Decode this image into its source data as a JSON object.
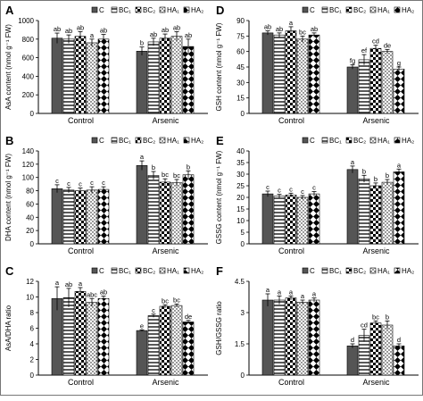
{
  "colors": {
    "axis": "#000000",
    "bar_dark": "#555555",
    "background": "#ffffff"
  },
  "chart_data": [
    {
      "type": "bar",
      "panel_letter": "A",
      "ylabel": "AsA content (nmol g⁻¹ FW)",
      "ylim": [
        0,
        1000
      ],
      "yticks": [
        0,
        200,
        400,
        600,
        800,
        1000
      ],
      "categories": [
        "Control",
        "Arsenic"
      ],
      "series": [
        {
          "name": "C",
          "values": [
            810,
            670
          ],
          "errors": [
            55,
            45
          ],
          "letters": [
            "ab",
            "b"
          ]
        },
        {
          "name": "BC₁",
          "values": [
            800,
            770
          ],
          "errors": [
            45,
            40
          ],
          "letters": [
            "ab",
            "ab"
          ]
        },
        {
          "name": "BC₂",
          "values": [
            830,
            810
          ],
          "errors": [
            50,
            45
          ],
          "letters": [
            "ab",
            "ab"
          ]
        },
        {
          "name": "HA₁",
          "values": [
            760,
            830
          ],
          "errors": [
            40,
            50
          ],
          "letters": [
            "a",
            "ab"
          ]
        },
        {
          "name": "HA₂",
          "values": [
            800,
            720
          ],
          "errors": [
            50,
            80
          ],
          "letters": [
            "ab",
            "ab"
          ]
        }
      ]
    },
    {
      "type": "bar",
      "panel_letter": "B",
      "ylabel": "DHA content (nmol g⁻¹ FW)",
      "ylim": [
        0,
        140
      ],
      "yticks": [
        0,
        20,
        40,
        60,
        80,
        100,
        120,
        140
      ],
      "categories": [
        "Control",
        "Arsenic"
      ],
      "series": [
        {
          "name": "C",
          "values": [
            83,
            118
          ],
          "errors": [
            6,
            7
          ],
          "letters": [
            "c",
            "a"
          ]
        },
        {
          "name": "BC₁",
          "values": [
            81,
            103
          ],
          "errors": [
            4,
            6
          ],
          "letters": [
            "c",
            "b"
          ]
        },
        {
          "name": "BC₂",
          "values": [
            80,
            93
          ],
          "errors": [
            4,
            5
          ],
          "letters": [
            "c",
            "bc"
          ]
        },
        {
          "name": "HA₁",
          "values": [
            81,
            92
          ],
          "errors": [
            5,
            5
          ],
          "letters": [
            "c",
            "bc"
          ]
        },
        {
          "name": "HA₂",
          "values": [
            82,
            104
          ],
          "errors": [
            4,
            6
          ],
          "letters": [
            "c",
            "b"
          ]
        }
      ]
    },
    {
      "type": "bar",
      "panel_letter": "C",
      "ylabel": "AsA/DHA ratio",
      "ylim": [
        0,
        12
      ],
      "yticks": [
        0,
        2,
        4,
        6,
        8,
        10,
        12
      ],
      "categories": [
        "Control",
        "Arsenic"
      ],
      "series": [
        {
          "name": "C",
          "values": [
            9.8,
            5.7
          ],
          "errors": [
            1.5,
            0.1
          ],
          "letters": [
            "a",
            "e"
          ]
        },
        {
          "name": "BC₁",
          "values": [
            9.9,
            7.6
          ],
          "errors": [
            1.2,
            0.2
          ],
          "letters": [
            "ab",
            "c"
          ]
        },
        {
          "name": "BC₂",
          "values": [
            10.7,
            8.8
          ],
          "errors": [
            0.5,
            0.2
          ],
          "letters": [
            "a",
            "bc"
          ]
        },
        {
          "name": "HA₁",
          "values": [
            9.3,
            8.9
          ],
          "errors": [
            0.5,
            0.2
          ],
          "letters": [
            "abc",
            "bc"
          ]
        },
        {
          "name": "HA₂",
          "values": [
            9.8,
            6.8
          ],
          "errors": [
            0.3,
            0.2
          ],
          "letters": [
            "ab",
            "de"
          ]
        }
      ]
    },
    {
      "type": "bar",
      "panel_letter": "D",
      "ylabel": "GSH content (nmol g⁻¹ FW)",
      "ylim": [
        0,
        90
      ],
      "yticks": [
        0,
        15,
        30,
        45,
        60,
        75,
        90
      ],
      "categories": [
        "Control",
        "Arsenic"
      ],
      "series": [
        {
          "name": "C",
          "values": [
            78,
            45
          ],
          "errors": [
            2,
            2
          ],
          "letters": [
            "ab",
            "fg"
          ]
        },
        {
          "name": "BC₁",
          "values": [
            76,
            52
          ],
          "errors": [
            2,
            5
          ],
          "letters": [
            "ab",
            "ef"
          ]
        },
        {
          "name": "BC₂",
          "values": [
            80,
            63
          ],
          "errors": [
            4,
            3
          ],
          "letters": [
            "a",
            "cd"
          ]
        },
        {
          "name": "HA₁",
          "values": [
            72,
            60
          ],
          "errors": [
            3,
            2
          ],
          "letters": [
            "bc",
            "de"
          ]
        },
        {
          "name": "HA₂",
          "values": [
            76,
            43
          ],
          "errors": [
            2,
            2
          ],
          "letters": [
            "ab",
            "g"
          ]
        }
      ]
    },
    {
      "type": "bar",
      "panel_letter": "E",
      "ylabel": "GSSG content (nmol g⁻¹ FW)",
      "ylim": [
        0,
        40
      ],
      "yticks": [
        0,
        5,
        10,
        15,
        20,
        25,
        30,
        35,
        40
      ],
      "categories": [
        "Control",
        "Arsenic"
      ],
      "series": [
        {
          "name": "C",
          "values": [
            21.5,
            32
          ],
          "errors": [
            1.2,
            1.5
          ],
          "letters": [
            "c",
            "a"
          ]
        },
        {
          "name": "BC₁",
          "values": [
            20.5,
            28
          ],
          "errors": [
            0.8,
            1.5
          ],
          "letters": [
            "c",
            "b"
          ]
        },
        {
          "name": "BC₂",
          "values": [
            21,
            25
          ],
          "errors": [
            0.8,
            1.2
          ],
          "letters": [
            "c",
            "b"
          ]
        },
        {
          "name": "HA₁",
          "values": [
            20,
            26.5
          ],
          "errors": [
            0.8,
            1.2
          ],
          "letters": [
            "c",
            "b"
          ]
        },
        {
          "name": "HA₂",
          "values": [
            21.5,
            31
          ],
          "errors": [
            1.0,
            1.2
          ],
          "letters": [
            "c",
            "a"
          ]
        }
      ]
    },
    {
      "type": "bar",
      "panel_letter": "F",
      "ylabel": "GSH/GSSG ratio",
      "ylim": [
        0,
        4.5
      ],
      "yticks": [
        0,
        1.5,
        3.0,
        4.5
      ],
      "categories": [
        "Control",
        "Arsenic"
      ],
      "series": [
        {
          "name": "C",
          "values": [
            3.6,
            1.4
          ],
          "errors": [
            0.3,
            0.1
          ],
          "letters": [
            "a",
            "d"
          ]
        },
        {
          "name": "BC₁",
          "values": [
            3.6,
            1.9
          ],
          "errors": [
            0.2,
            0.3
          ],
          "letters": [
            "a",
            "cd"
          ]
        },
        {
          "name": "BC₂",
          "values": [
            3.7,
            2.5
          ],
          "errors": [
            0.1,
            0.1
          ],
          "letters": [
            "a",
            "bc"
          ]
        },
        {
          "name": "HA₁",
          "values": [
            3.5,
            2.4
          ],
          "errors": [
            0.1,
            0.2
          ],
          "letters": [
            "a",
            "b"
          ]
        },
        {
          "name": "HA₂",
          "values": [
            3.6,
            1.4
          ],
          "errors": [
            0.1,
            0.1
          ],
          "letters": [
            "a",
            "d"
          ]
        }
      ]
    }
  ]
}
